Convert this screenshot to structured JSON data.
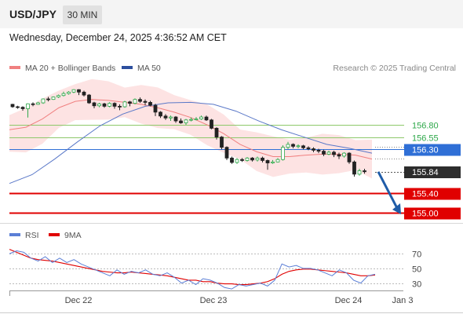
{
  "header": {
    "symbol": "USD/JPY",
    "timeframe": "30 MIN",
    "datetime": "Wednesday, December 24, 2025 4:36:52 AM CET"
  },
  "colors": {
    "price_up": "#2ea84a",
    "price_down": "#222222",
    "ma20": "#f08080",
    "bollinger_fill": "#fde3e3",
    "ma50": "#5a78c8",
    "resistance": "#8dc86a",
    "pivot": "#2f6fd6",
    "support": "#e00000",
    "rsi": "#5b7fd6",
    "rsi_ma": "#e00000",
    "arrow": "#1f5ca8"
  },
  "chart_data": [
    {
      "type": "candlestick",
      "legend": [
        {
          "label": "MA 20 + Bollinger Bands",
          "color": "#f08080"
        },
        {
          "label": "MA 50",
          "color": "#2d4f9e"
        }
      ],
      "source": "Research © 2025 Trading Central",
      "ylim": [
        154.92,
        157.62
      ],
      "levels": [
        {
          "value": 156.8,
          "label": "156.80",
          "kind": "resistance"
        },
        {
          "value": 156.55,
          "label": "156.55",
          "kind": "resistance"
        },
        {
          "value": 156.3,
          "label": "156.30",
          "kind": "pivot"
        },
        {
          "value": 155.4,
          "label": "155.40",
          "kind": "support"
        },
        {
          "value": 155.0,
          "label": "155.00",
          "kind": "support"
        }
      ],
      "last_price": "155.84",
      "forecast_arrow": {
        "from": 155.84,
        "to": 155.0,
        "direction": "down"
      },
      "ma20_path": [
        156.7,
        156.75,
        156.92,
        157.15,
        157.28,
        157.32,
        157.3,
        157.26,
        157.22,
        157.15,
        157.06,
        156.95,
        156.8,
        156.62,
        156.4,
        156.25,
        156.15,
        156.15,
        156.18,
        156.2,
        156.2,
        156.18,
        156.1
      ],
      "ma50_path": [
        155.6,
        155.78,
        156.1,
        156.45,
        156.78,
        157.02,
        157.18,
        157.25,
        157.26,
        157.22,
        157.08,
        156.88,
        156.7,
        156.55,
        156.4,
        156.32,
        156.22
      ],
      "candles": [
        [
          157.22,
          157.17,
          157.23,
          157.15
        ],
        [
          157.17,
          157.16,
          157.19,
          157.13
        ],
        [
          157.16,
          157.13,
          157.18,
          157.09
        ],
        [
          157.13,
          157.23,
          157.24,
          156.95
        ],
        [
          157.23,
          157.22,
          157.26,
          157.18
        ],
        [
          157.22,
          157.25,
          157.27,
          157.21
        ],
        [
          157.25,
          157.33,
          157.34,
          157.23
        ],
        [
          157.33,
          157.32,
          157.37,
          157.28
        ],
        [
          157.32,
          157.37,
          157.38,
          157.31
        ],
        [
          157.37,
          157.4,
          157.42,
          157.35
        ],
        [
          157.4,
          157.44,
          157.48,
          157.38
        ],
        [
          157.44,
          157.47,
          157.49,
          157.42
        ],
        [
          157.47,
          157.52,
          157.53,
          157.45
        ],
        [
          157.52,
          157.47,
          157.53,
          157.41
        ],
        [
          157.47,
          157.41,
          157.5,
          157.38
        ],
        [
          157.41,
          157.25,
          157.43,
          157.23
        ],
        [
          157.25,
          157.19,
          157.27,
          157.14
        ],
        [
          157.19,
          157.23,
          157.25,
          157.16
        ],
        [
          157.23,
          157.18,
          157.25,
          157.15
        ],
        [
          157.18,
          157.24,
          157.26,
          157.16
        ],
        [
          157.24,
          157.18,
          157.26,
          157.13
        ],
        [
          157.18,
          157.17,
          157.22,
          157.1
        ],
        [
          157.17,
          157.27,
          157.29,
          157.15
        ],
        [
          157.27,
          157.24,
          157.29,
          157.18
        ],
        [
          157.24,
          157.32,
          157.34,
          157.22
        ],
        [
          157.32,
          157.28,
          157.36,
          157.25
        ],
        [
          157.28,
          157.26,
          157.32,
          157.2
        ],
        [
          157.26,
          157.2,
          157.29,
          157.18
        ],
        [
          157.2,
          157.06,
          157.23,
          156.98
        ],
        [
          157.06,
          156.98,
          157.08,
          156.94
        ],
        [
          156.98,
          156.94,
          157.02,
          156.9
        ],
        [
          156.94,
          156.96,
          156.99,
          156.88
        ],
        [
          156.96,
          156.88,
          156.98,
          156.84
        ],
        [
          156.88,
          156.84,
          156.93,
          156.82
        ],
        [
          156.84,
          156.9,
          156.92,
          156.8
        ],
        [
          156.9,
          156.91,
          156.95,
          156.87
        ],
        [
          156.91,
          156.92,
          156.96,
          156.89
        ],
        [
          156.92,
          156.96,
          156.99,
          156.9
        ],
        [
          156.96,
          156.9,
          156.99,
          156.88
        ],
        [
          156.9,
          156.73,
          156.92,
          156.71
        ],
        [
          156.73,
          156.55,
          156.75,
          156.5
        ],
        [
          156.55,
          156.34,
          156.57,
          156.3
        ],
        [
          156.34,
          156.12,
          156.36,
          156.08
        ],
        [
          156.12,
          156.03,
          156.15,
          156.0
        ],
        [
          156.03,
          156.09,
          156.12,
          156.0
        ],
        [
          156.09,
          156.07,
          156.12,
          156.04
        ],
        [
          156.07,
          156.12,
          156.14,
          156.05
        ],
        [
          156.12,
          156.08,
          156.14,
          156.05
        ],
        [
          156.08,
          156.12,
          156.15,
          156.05
        ],
        [
          156.12,
          156.07,
          156.15,
          156.03
        ],
        [
          156.07,
          156.02,
          156.09,
          155.88
        ],
        [
          156.02,
          156.04,
          156.08,
          156.0
        ],
        [
          156.04,
          156.09,
          156.12,
          156.03
        ],
        [
          156.09,
          156.34,
          156.38,
          156.07
        ],
        [
          156.34,
          156.4,
          156.45,
          156.3
        ],
        [
          156.4,
          156.36,
          156.42,
          156.32
        ],
        [
          156.36,
          156.37,
          156.4,
          156.32
        ],
        [
          156.37,
          156.33,
          156.39,
          156.3
        ],
        [
          156.33,
          156.31,
          156.36,
          156.28
        ],
        [
          156.31,
          156.28,
          156.34,
          156.24
        ],
        [
          156.28,
          156.26,
          156.31,
          156.22
        ],
        [
          156.26,
          156.2,
          156.29,
          156.16
        ],
        [
          156.2,
          156.24,
          156.27,
          156.18
        ],
        [
          156.24,
          156.19,
          156.27,
          156.14
        ],
        [
          156.19,
          156.16,
          156.23,
          156.1
        ],
        [
          156.16,
          156.22,
          156.24,
          156.13
        ],
        [
          156.22,
          156.04,
          156.24,
          156.0
        ],
        [
          156.04,
          155.79,
          156.07,
          155.74
        ],
        [
          155.79,
          155.86,
          155.9,
          155.76
        ],
        [
          155.86,
          155.84,
          155.9,
          155.8
        ]
      ],
      "xticks": [
        "Dec 22",
        "Dec 23",
        "Dec 24",
        "Jan 3"
      ]
    },
    {
      "type": "line",
      "legend": [
        {
          "label": "RSI",
          "color": "#5b7fd6"
        },
        {
          "label": "9MA",
          "color": "#e00000"
        }
      ],
      "ylim": [
        20,
        82
      ],
      "yticks": [
        70,
        50,
        30
      ],
      "series": [
        {
          "name": "RSI",
          "values": [
            70,
            74,
            72,
            64,
            60,
            66,
            58,
            64,
            58,
            62,
            56,
            52,
            48,
            44,
            40,
            48,
            42,
            46,
            44,
            48,
            42,
            40,
            44,
            38,
            30,
            34,
            28,
            36,
            34,
            30,
            24,
            22,
            28,
            26,
            28,
            30,
            26,
            34,
            56,
            52,
            54,
            50,
            50,
            48,
            44,
            40,
            48,
            44,
            34,
            30,
            40,
            42
          ]
        },
        {
          "name": "9MA",
          "values": [
            76,
            72,
            68,
            64,
            62,
            61,
            60,
            58,
            56,
            54,
            52,
            50,
            48,
            46,
            45,
            44,
            44,
            45,
            44,
            43,
            42,
            41,
            40,
            38,
            36,
            34,
            34,
            32,
            32,
            30,
            29,
            29,
            28,
            28,
            29,
            30,
            32,
            36,
            42,
            46,
            48,
            49,
            49,
            48,
            47,
            46,
            45,
            44,
            42,
            40,
            40,
            41
          ]
        }
      ]
    }
  ]
}
